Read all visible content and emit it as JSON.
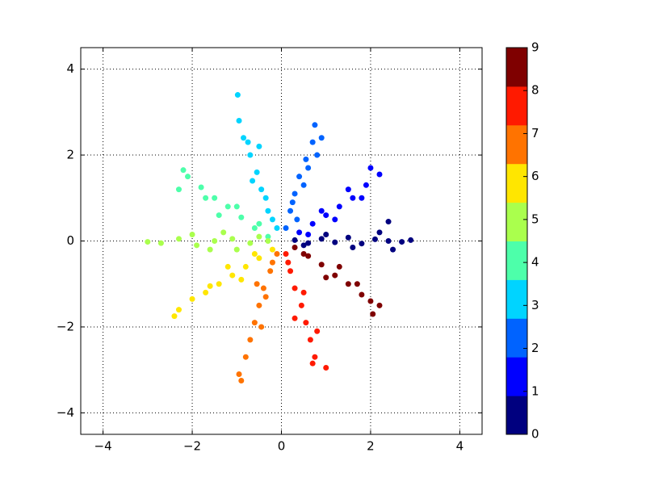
{
  "chart_data": {
    "type": "scatter",
    "xlim": [
      -4.5,
      4.5
    ],
    "ylim": [
      -4.5,
      4.5
    ],
    "xticks": [
      {
        "value": -4,
        "label": "−4"
      },
      {
        "value": -2,
        "label": "−2"
      },
      0,
      2,
      4
    ],
    "yticks": [
      {
        "value": -4,
        "label": "−4"
      },
      {
        "value": -2,
        "label": "−2"
      },
      0,
      2,
      4
    ],
    "grid": true,
    "colorbar": {
      "lim": [
        0,
        9
      ],
      "ticks": [
        0,
        1,
        2,
        3,
        4,
        5,
        6,
        7,
        8,
        9
      ]
    },
    "series": [
      {
        "color": "#00007f",
        "x": [
          0.3,
          0.6,
          0.9,
          1.2,
          1.5,
          1.8,
          2.1,
          2.4,
          2.7,
          2.9,
          1.0,
          1.6,
          2.2,
          0.5,
          2.4,
          2.5
        ],
        "y": [
          0.02,
          -0.05,
          0.05,
          -0.03,
          0.08,
          -0.06,
          0.04,
          0.0,
          -0.02,
          0.02,
          0.15,
          -0.15,
          0.2,
          -0.1,
          0.45,
          -0.2
        ]
      },
      {
        "color": "#0000ff",
        "x": [
          0.4,
          0.7,
          1.0,
          1.3,
          1.6,
          1.9,
          2.0,
          2.2,
          1.2,
          0.9,
          1.5,
          1.8,
          0.6
        ],
        "y": [
          0.2,
          0.4,
          0.6,
          0.8,
          1.0,
          1.3,
          1.7,
          1.55,
          0.5,
          0.7,
          1.2,
          1.0,
          0.15
        ]
      },
      {
        "color": "#0063ff",
        "x": [
          0.1,
          0.2,
          0.3,
          0.4,
          0.55,
          0.7,
          0.75,
          0.9,
          0.5,
          0.25,
          0.6,
          0.35,
          0.8
        ],
        "y": [
          0.3,
          0.7,
          1.1,
          1.5,
          1.9,
          2.3,
          2.7,
          2.4,
          1.3,
          0.9,
          1.7,
          0.5,
          2.0
        ]
      },
      {
        "color": "#00d4ff",
        "x": [
          -0.1,
          -0.3,
          -0.45,
          -0.55,
          -0.7,
          -0.85,
          -0.95,
          -0.98,
          -0.5,
          -0.35,
          -0.65,
          -0.2,
          -0.75
        ],
        "y": [
          0.3,
          0.7,
          1.2,
          1.6,
          2.0,
          2.4,
          2.8,
          3.4,
          2.2,
          1.0,
          1.4,
          0.5,
          2.3
        ]
      },
      {
        "color": "#4dffaa",
        "x": [
          -0.3,
          -0.6,
          -0.9,
          -1.2,
          -1.5,
          -1.8,
          -2.1,
          -2.2,
          -1.4,
          -1.0,
          -1.7,
          -0.5,
          -2.3
        ],
        "y": [
          0.1,
          0.3,
          0.55,
          0.8,
          1.0,
          1.25,
          1.5,
          1.65,
          0.6,
          0.8,
          1.0,
          0.4,
          1.2
        ]
      },
      {
        "color": "#aaff4d",
        "x": [
          -0.3,
          -0.7,
          -1.1,
          -1.5,
          -1.9,
          -2.3,
          -2.7,
          -3.0,
          -1.3,
          -1.0,
          -2.0,
          -0.5,
          -1.6
        ],
        "y": [
          0.0,
          -0.05,
          0.05,
          0.0,
          -0.1,
          0.05,
          -0.05,
          -0.02,
          0.2,
          -0.2,
          0.15,
          0.1,
          -0.2
        ]
      },
      {
        "color": "#ffe600",
        "x": [
          -0.2,
          -0.5,
          -0.8,
          -1.1,
          -1.4,
          -1.7,
          -2.0,
          -2.3,
          -2.4,
          -1.2,
          -0.9,
          -1.6,
          -0.6
        ],
        "y": [
          -0.2,
          -0.4,
          -0.6,
          -0.8,
          -1.0,
          -1.2,
          -1.35,
          -1.6,
          -1.75,
          -0.6,
          -0.9,
          -1.05,
          -0.3
        ]
      },
      {
        "color": "#ff7300",
        "x": [
          -0.1,
          -0.25,
          -0.4,
          -0.5,
          -0.6,
          -0.7,
          -0.8,
          -0.95,
          -0.9,
          -0.35,
          -0.55,
          -0.45,
          -0.2
        ],
        "y": [
          -0.3,
          -0.7,
          -1.1,
          -1.5,
          -1.9,
          -2.3,
          -2.7,
          -3.1,
          -3.25,
          -1.3,
          -1.0,
          -2.0,
          -0.5
        ]
      },
      {
        "color": "#ff1a00",
        "x": [
          0.1,
          0.2,
          0.3,
          0.45,
          0.55,
          0.65,
          0.75,
          0.7,
          1.0,
          0.5,
          0.3,
          0.8,
          0.15
        ],
        "y": [
          -0.3,
          -0.7,
          -1.1,
          -1.5,
          -1.9,
          -2.3,
          -2.7,
          -2.85,
          -2.95,
          -1.2,
          -1.8,
          -2.1,
          -0.5
        ]
      },
      {
        "color": "#7f0000",
        "x": [
          0.3,
          0.6,
          0.9,
          1.2,
          1.5,
          1.8,
          2.0,
          2.2,
          2.05,
          1.3,
          1.0,
          1.7,
          0.5
        ],
        "y": [
          -0.15,
          -0.35,
          -0.55,
          -0.8,
          -1.0,
          -1.25,
          -1.4,
          -1.5,
          -1.7,
          -0.6,
          -0.85,
          -1.0,
          -0.3
        ]
      }
    ]
  }
}
